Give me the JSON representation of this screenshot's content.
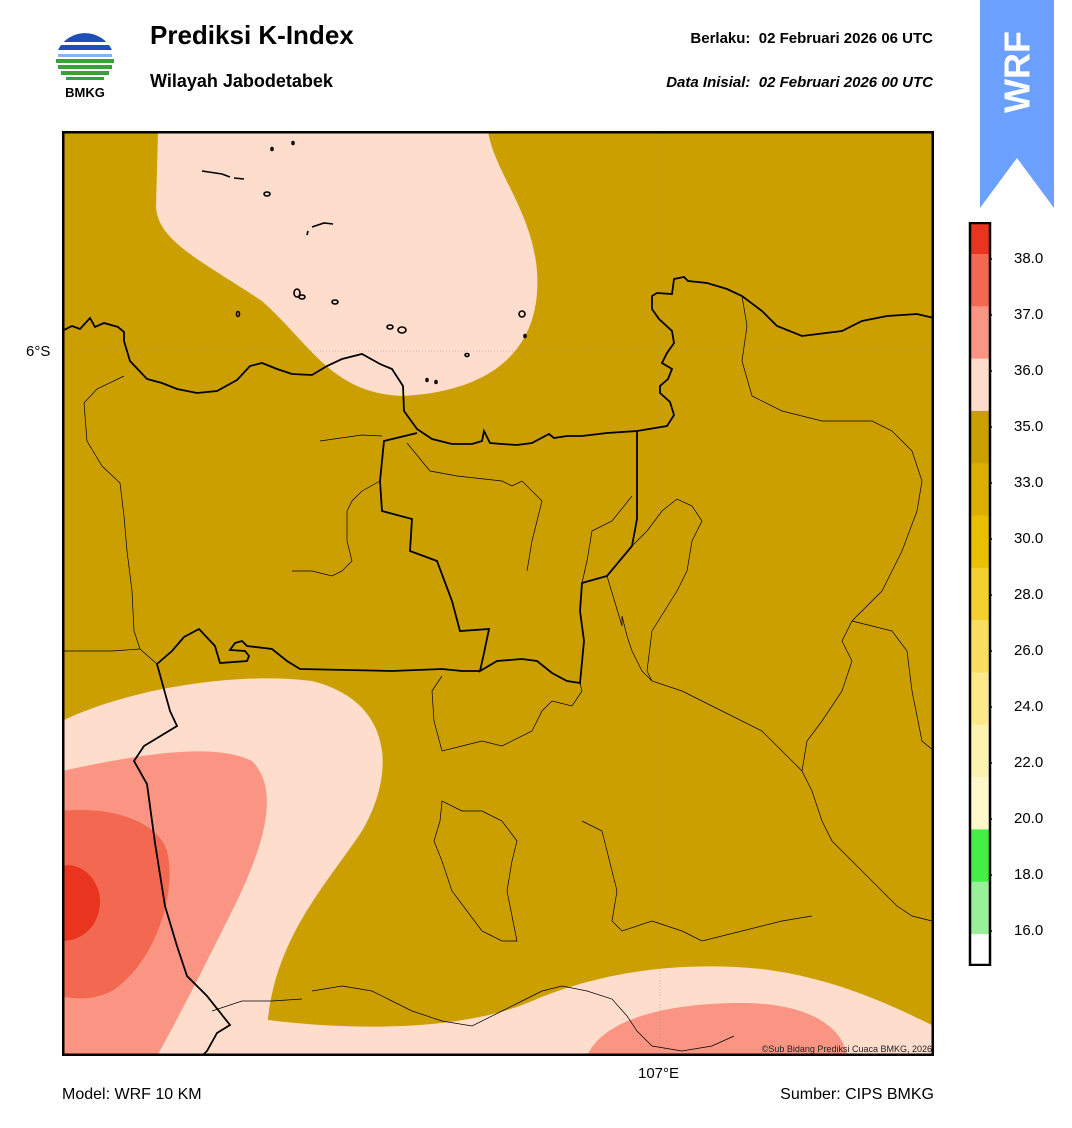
{
  "header": {
    "title": "Prediksi K-Index",
    "subtitle": "Wilayah Jabodetabek",
    "valid_time": "Berlaku:  02 Februari 2026 06 UTC",
    "initial_time": "Data Inisial:  02 Februari 2026 00 UTC"
  },
  "logo": {
    "text": "BMKG",
    "icon": "bmkg-logo-icon"
  },
  "ribbon": {
    "text": "WRF",
    "color": "#6ba0ff"
  },
  "map": {
    "lat_label": "6°S",
    "lon_label": "107°E",
    "copyright": "©Sub Bidang Prediksi Cuaca BMKG, 2026",
    "colors": {
      "background": "#cc9f00",
      "band_35_36": "#ffddcc",
      "band_36_37": "#f99582",
      "band_37_38": "#f26851",
      "band_38_plus": "#e93520"
    }
  },
  "footer": {
    "model": "Model: WRF 10 KM",
    "source": "Sumber: CIPS BMKG"
  },
  "colorbar": {
    "labels": [
      "38.0",
      "37.0",
      "36.0",
      "35.0",
      "33.0",
      "30.0",
      "28.0",
      "26.0",
      "24.0",
      "22.0",
      "20.0",
      "18.0",
      "16.0"
    ],
    "colors": [
      "#e93520",
      "#f26851",
      "#f99582",
      "#ffddcc",
      "#cc9f00",
      "#dbae00",
      "#e8c000",
      "#f2d030",
      "#f7de60",
      "#fbe98a",
      "#fdf3b0",
      "#fff8cc",
      "#44ee44",
      "#99f099",
      "#ffffff"
    ]
  }
}
